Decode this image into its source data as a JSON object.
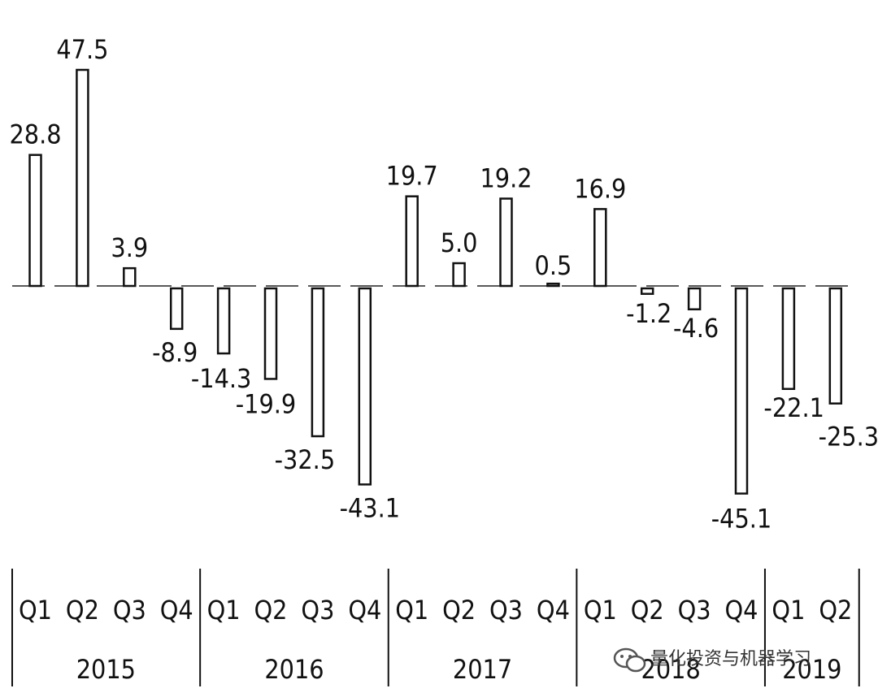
{
  "chart_data": {
    "type": "bar",
    "title": "",
    "xlabel": "",
    "ylabel": "",
    "categories": [
      "Q1",
      "Q2",
      "Q3",
      "Q4",
      "Q1",
      "Q2",
      "Q3",
      "Q4",
      "Q1",
      "Q2",
      "Q3",
      "Q4",
      "Q1",
      "Q2",
      "Q3",
      "Q4",
      "Q1",
      "Q2"
    ],
    "groups": [
      {
        "label": "2015",
        "count": 4
      },
      {
        "label": "2016",
        "count": 4
      },
      {
        "label": "2017",
        "count": 4
      },
      {
        "label": "2018",
        "count": 4
      },
      {
        "label": "2019",
        "count": 2
      }
    ],
    "values": [
      28.8,
      47.5,
      3.9,
      -8.9,
      -14.3,
      -19.9,
      -32.5,
      -43.1,
      19.7,
      5.0,
      19.2,
      0.5,
      16.9,
      -1.2,
      -4.6,
      -45.1,
      -22.1,
      -25.3
    ],
    "value_labels": [
      "28.8",
      "47.5",
      "3.9",
      "-8.9",
      "-14.3",
      "-19.9",
      "-32.5",
      "-43.1",
      "19.7",
      "5.0",
      "19.2",
      "0.5",
      "16.9",
      "-1.2",
      "-4.6",
      "-45.1",
      "-22.1",
      "-25.3"
    ],
    "ylim": [
      -45.1,
      47.5
    ],
    "grid": false,
    "legend": "none",
    "bar_fill": "#ffffff",
    "bar_stroke": "#111111"
  },
  "watermark": {
    "text": "量化投资与机器学习",
    "icon": "wechat-icon"
  }
}
